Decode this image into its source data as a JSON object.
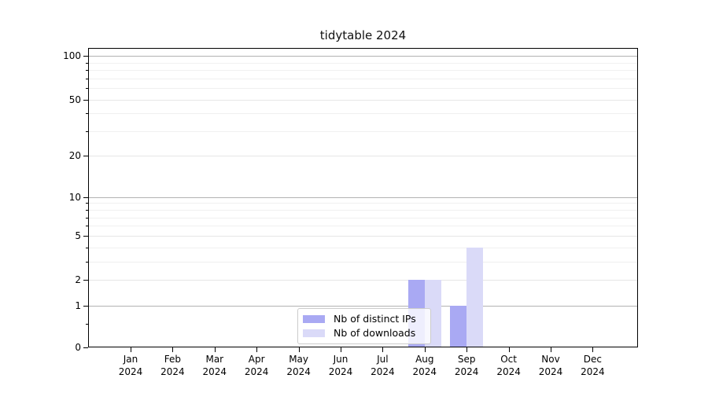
{
  "chart_data": {
    "type": "bar",
    "title": "tidytable 2024",
    "categories": [
      "Jan",
      "Feb",
      "Mar",
      "Apr",
      "May",
      "Jun",
      "Jul",
      "Aug",
      "Sep",
      "Oct",
      "Nov",
      "Dec"
    ],
    "year_label": "2024",
    "series": [
      {
        "name": "Nb of distinct IPs",
        "color": "#a9a9f3",
        "values": [
          0,
          0,
          0,
          0,
          0,
          0,
          0,
          2,
          1,
          0,
          0,
          0
        ]
      },
      {
        "name": "Nb of downloads",
        "color": "#dadaf8",
        "values": [
          0,
          0,
          0,
          0,
          0,
          0,
          0,
          2,
          4,
          0,
          0,
          0
        ]
      }
    ],
    "yscale": "log1p",
    "ylim": [
      0,
      110
    ],
    "y_major_ticks": [
      0,
      1,
      2,
      5,
      10,
      20,
      50,
      100
    ],
    "y_minor_grid_ticks": [
      3,
      4,
      6,
      7,
      8,
      9,
      30,
      40,
      60,
      70,
      80,
      90
    ],
    "y_tick_only": [
      0.5
    ],
    "decade_lines": [
      1,
      10,
      100
    ],
    "grid": "horizontal",
    "legend_position": "bottom-center",
    "xlabel": "",
    "ylabel": "",
    "colors": {
      "decade_grid": "#b2b2b2",
      "major_grid": "#e6e6e6",
      "minor_grid": "#f0f0f0",
      "spine": "#000000",
      "text": "#000000",
      "background": "#ffffff"
    }
  }
}
